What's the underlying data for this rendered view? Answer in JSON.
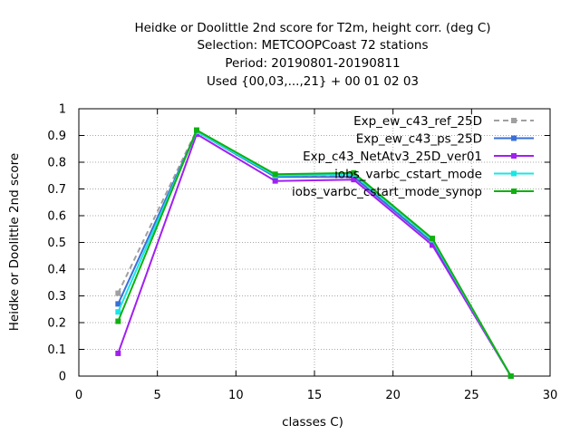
{
  "chart_data": {
    "type": "line",
    "title_lines": [
      "Heidke or Doolittle 2nd score  for T2m, height corr. (deg C)",
      "Selection: METCOOPCoast     72 stations",
      "Period: 20190801-20190811",
      "Used {00,03,...,21} + 00 01 02 03"
    ],
    "xlabel": "classes C)",
    "ylabel": "Heidke or Doolittle 2nd score",
    "xlim": [
      0,
      30
    ],
    "ylim": [
      0,
      1
    ],
    "xticks": [
      0,
      5,
      10,
      15,
      20,
      25,
      30
    ],
    "yticks": [
      0,
      0.1,
      0.2,
      0.3,
      0.4,
      0.5,
      0.6,
      0.7,
      0.8,
      0.9,
      1
    ],
    "grid": true,
    "legend_position": "top-right",
    "x": [
      2.5,
      7.5,
      12.5,
      17.5,
      22.5,
      27.5
    ],
    "series": [
      {
        "name": "Exp_ew_c43_ref_25D",
        "color": "#a0a0a0",
        "dash": true,
        "values": [
          0.31,
          0.92,
          0.75,
          0.75,
          0.5,
          0.0
        ]
      },
      {
        "name": "Exp_ew_c43_ps_25D",
        "color": "#3a6fd8",
        "dash": false,
        "values": [
          0.27,
          0.915,
          0.745,
          0.745,
          0.5,
          0.0
        ]
      },
      {
        "name": "Exp_c43_NetAtv3_25D_ver01",
        "color": "#a020f0",
        "dash": false,
        "values": [
          0.085,
          0.905,
          0.73,
          0.735,
          0.49,
          0.0
        ]
      },
      {
        "name": "iobs_varbc_cstart_mode",
        "color": "#19e6e6",
        "dash": false,
        "values": [
          0.24,
          0.915,
          0.75,
          0.755,
          0.51,
          0.0
        ]
      },
      {
        "name": "iobs_varbc_cstart_mode_synop",
        "color": "#10b010",
        "dash": false,
        "values": [
          0.205,
          0.92,
          0.755,
          0.76,
          0.515,
          0.0
        ]
      }
    ]
  }
}
